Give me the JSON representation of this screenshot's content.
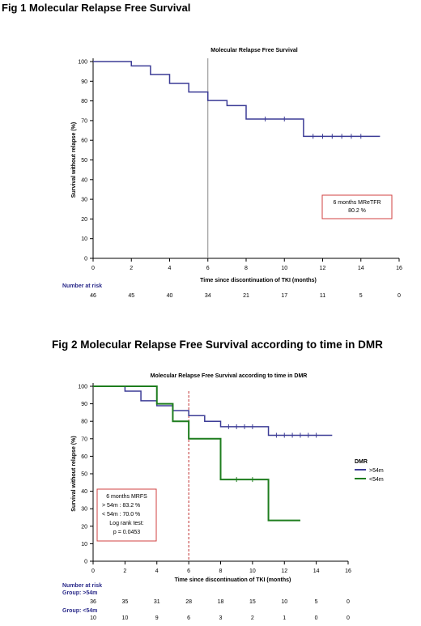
{
  "fig1_heading": "Fig 1 Molecular Relapse Free Survival",
  "fig2_heading": "Fig 2 Molecular Relapse Free Survival according to time in DMR",
  "chart_data": [
    {
      "type": "line",
      "step": true,
      "title": "Molecular Relapse Free Survival",
      "xlabel": "Time since discontinuation of TKI (months)",
      "ylabel": "Survival without relapse (%)",
      "xlim": [
        0,
        16
      ],
      "ylim": [
        0,
        100
      ],
      "xticks": [
        0,
        2,
        4,
        6,
        8,
        10,
        12,
        14,
        16
      ],
      "yticks": [
        0,
        10,
        20,
        30,
        40,
        50,
        60,
        70,
        80,
        90,
        100
      ],
      "vline_x": 6,
      "series": [
        {
          "name": "",
          "color": "#3c3c96",
          "x": [
            0,
            2,
            3,
            4,
            5,
            6,
            7,
            8,
            11,
            15
          ],
          "y": [
            100,
            97.8,
            93.4,
            88.9,
            84.5,
            80.2,
            77.6,
            70.8,
            62.0,
            62.0
          ],
          "censor_x": [
            9,
            10,
            11.5,
            12,
            12.5,
            13,
            13.5,
            14
          ]
        }
      ],
      "annotation": [
        "6 months MReTFR",
        "80.2 %"
      ],
      "risk_table": {
        "title": "Number at risk",
        "rows": [
          {
            "label": "",
            "values": [
              "46",
              "45",
              "40",
              "34",
              "21",
              "17",
              "11",
              "5",
              "0"
            ]
          }
        ]
      }
    },
    {
      "type": "line",
      "step": true,
      "title": "Molecular Relapse Free Survival according to time in DMR",
      "xlabel": "Time since discontinuation of TKI (months)",
      "ylabel": "Survival without relapse (%)",
      "xlim": [
        0,
        16
      ],
      "ylim": [
        0,
        100
      ],
      "xticks": [
        0,
        2,
        4,
        6,
        8,
        10,
        12,
        14,
        16
      ],
      "yticks": [
        0,
        10,
        20,
        30,
        40,
        50,
        60,
        70,
        80,
        90,
        100
      ],
      "vline_x": 6,
      "legend": {
        "title": "DMR",
        "position": "right"
      },
      "series": [
        {
          "name": ">54m",
          "color": "#3c3c96",
          "x": [
            0,
            2,
            3,
            4,
            5,
            6,
            7,
            8,
            11,
            15
          ],
          "y": [
            100,
            97.2,
            91.7,
            88.9,
            86.1,
            83.2,
            80.0,
            76.9,
            72.0,
            72.0
          ],
          "censor_x": [
            8.5,
            9,
            9.5,
            10,
            11.5,
            12,
            12.5,
            13,
            13.5,
            14
          ]
        },
        {
          "name": "<54m",
          "color": "#1e7d1e",
          "x": [
            0,
            4,
            5,
            6,
            8,
            11,
            13
          ],
          "y": [
            100,
            90.0,
            80.0,
            70.0,
            46.7,
            23.3,
            23.3
          ],
          "censor_x": [
            9,
            10
          ]
        }
      ],
      "annotation": [
        "6 months MRFS",
        "> 54m : 83.2 %",
        "< 54m : 70.0 %",
        "Log rank test:",
        "p = 0.0453"
      ],
      "risk_table": {
        "title": "Number at risk",
        "rows": [
          {
            "label": "Group: >54m",
            "values": [
              "36",
              "35",
              "31",
              "28",
              "18",
              "15",
              "10",
              "5",
              "0"
            ]
          },
          {
            "label": "Group: <54m",
            "values": [
              "10",
              "10",
              "9",
              "6",
              "3",
              "2",
              "1",
              "0",
              "0"
            ]
          }
        ]
      }
    }
  ]
}
